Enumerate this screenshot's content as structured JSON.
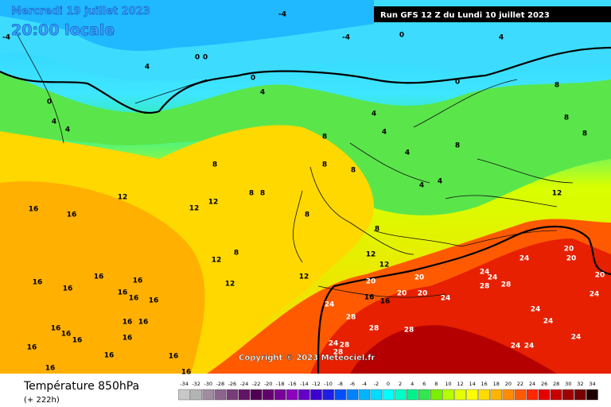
{
  "header": {
    "date": "Mercredi 19 juillet 2023",
    "time": "20:00 locale",
    "run": "Run GFS 12 Z du Lundi 10 juillet 2023"
  },
  "copyright": "Copyright © 2023 Meteociel.fr",
  "legend": {
    "title": "Température 850hPa",
    "subtitle": "(+ 222h)",
    "ticks": [
      -34,
      -32,
      -30,
      -28,
      -26,
      -24,
      -22,
      -20,
      -18,
      -16,
      -14,
      -12,
      -10,
      -8,
      -6,
      -4,
      -2,
      0,
      2,
      4,
      6,
      8,
      10,
      12,
      14,
      16,
      18,
      20,
      22,
      24,
      26,
      28,
      30,
      32,
      34
    ],
    "colors": [
      "#c8c8c8",
      "#b4b4b4",
      "#a08ca0",
      "#8c648c",
      "#783c78",
      "#641464",
      "#500050",
      "#64006e",
      "#780096",
      "#8c00be",
      "#6400c8",
      "#3c00d2",
      "#1e1ee6",
      "#0050ff",
      "#0082ff",
      "#00b4ff",
      "#00dcff",
      "#00ffff",
      "#00ffc8",
      "#00f08c",
      "#32e650",
      "#78f000",
      "#b4ff00",
      "#e6ff00",
      "#ffff00",
      "#ffdc00",
      "#ffb400",
      "#ff8c00",
      "#ff5a00",
      "#ff2800",
      "#e60000",
      "#c80000",
      "#a00000",
      "#780000",
      "#1e0000"
    ]
  },
  "map": {
    "contour_labels": [
      -4,
      -4,
      0,
      -4,
      0,
      0,
      4,
      0,
      4,
      0,
      4,
      4,
      4,
      4,
      0,
      4,
      8,
      8,
      8,
      8,
      8,
      8,
      8,
      8,
      4,
      4,
      4,
      8,
      8,
      8,
      8,
      8,
      12,
      12,
      12,
      12,
      12,
      12,
      12,
      12,
      12,
      16,
      16,
      16,
      16,
      16,
      16,
      16,
      16,
      16,
      16,
      16,
      16,
      16,
      16,
      16,
      16,
      16,
      16,
      16,
      16,
      16,
      16,
      20,
      20,
      20,
      20,
      20,
      20,
      20,
      24,
      24,
      24,
      24,
      24,
      24,
      24,
      24,
      24,
      24,
      24,
      24,
      28,
      28,
      28,
      28,
      28,
      28,
      28
    ]
  }
}
